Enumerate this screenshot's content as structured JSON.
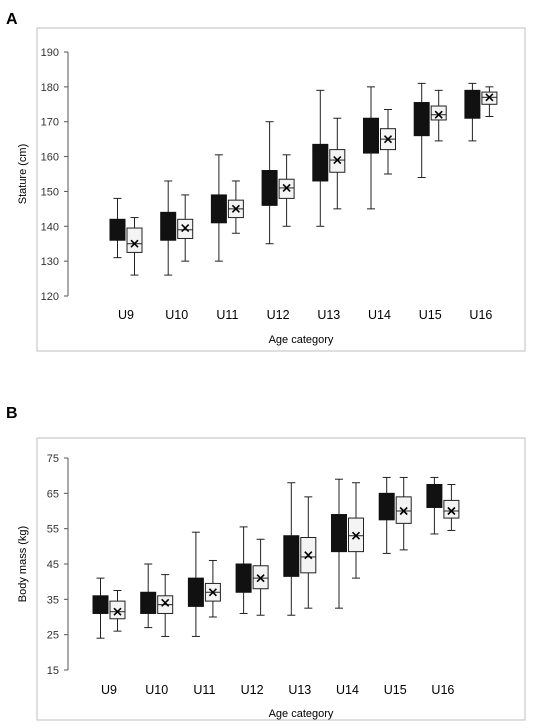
{
  "chart_data": [
    {
      "panel": "A",
      "type": "box",
      "xlabel": "Age category",
      "ylabel": "Stature (cm)",
      "ylim": [
        120,
        190
      ],
      "yticks": [
        120,
        130,
        140,
        150,
        160,
        170,
        180,
        190
      ],
      "categories": [
        "U9",
        "U10",
        "U11",
        "U12",
        "U13",
        "U14",
        "U15",
        "U16"
      ],
      "series": [
        {
          "fill": "#111111",
          "boxes": [
            {
              "min": 131,
              "q1": 136,
              "q3": 142,
              "max": 148
            },
            {
              "min": 126,
              "q1": 136,
              "q3": 144,
              "max": 153
            },
            {
              "min": 130,
              "q1": 141,
              "q3": 149,
              "max": 160.5
            },
            {
              "min": 135,
              "q1": 146,
              "q3": 156,
              "max": 170
            },
            {
              "min": 140,
              "q1": 153,
              "q3": 163.5,
              "max": 179
            },
            {
              "min": 145,
              "q1": 161,
              "q3": 171,
              "max": 180
            },
            {
              "min": 154,
              "q1": 166,
              "q3": 175.5,
              "max": 181
            },
            {
              "min": 164.5,
              "q1": 171,
              "q3": 179,
              "max": 181
            }
          ]
        },
        {
          "fill": "#f4f4f4",
          "boxes": [
            {
              "min": 126,
              "q1": 132.5,
              "median": 135,
              "q3": 139.5,
              "max": 142.5,
              "mean": 135
            },
            {
              "min": 130,
              "q1": 136.5,
              "median": 139,
              "q3": 142,
              "max": 149,
              "mean": 139.5
            },
            {
              "min": 138,
              "q1": 142.5,
              "median": 145,
              "q3": 147.5,
              "max": 153,
              "mean": 145
            },
            {
              "min": 140,
              "q1": 148,
              "median": 151,
              "q3": 153.5,
              "max": 160.5,
              "mean": 151
            },
            {
              "min": 145,
              "q1": 155.5,
              "median": 159,
              "q3": 162,
              "max": 171,
              "mean": 159
            },
            {
              "min": 155,
              "q1": 162,
              "median": 165,
              "q3": 168,
              "max": 173.5,
              "mean": 165
            },
            {
              "min": 164.5,
              "q1": 170.5,
              "median": 172,
              "q3": 174.5,
              "max": 179,
              "mean": 172
            },
            {
              "min": 171.5,
              "q1": 175,
              "median": 177,
              "q3": 178.5,
              "max": 180,
              "mean": 177
            }
          ]
        }
      ]
    },
    {
      "panel": "B",
      "type": "box",
      "xlabel": "Age category",
      "ylabel": "Body mass (kg)",
      "ylim": [
        15,
        75
      ],
      "yticks": [
        15,
        25,
        35,
        45,
        55,
        65,
        75
      ],
      "categories": [
        "U9",
        "U10",
        "U11",
        "U12",
        "U13",
        "U14",
        "U15",
        "U16"
      ],
      "series": [
        {
          "fill": "#111111",
          "boxes": [
            {
              "min": 24,
              "q1": 31,
              "q3": 36,
              "max": 41
            },
            {
              "min": 27,
              "q1": 31,
              "q3": 37,
              "max": 45
            },
            {
              "min": 24.5,
              "q1": 33,
              "q3": 41,
              "max": 54
            },
            {
              "min": 31,
              "q1": 37,
              "q3": 45,
              "max": 55.5
            },
            {
              "min": 30.5,
              "q1": 41.5,
              "q3": 53,
              "max": 68
            },
            {
              "min": 32.5,
              "q1": 48.5,
              "q3": 59,
              "max": 69
            },
            {
              "min": 48,
              "q1": 57.5,
              "q3": 65,
              "max": 69.5
            },
            {
              "min": 53.5,
              "q1": 61,
              "q3": 67.5,
              "max": 69.5
            }
          ]
        },
        {
          "fill": "#f4f4f4",
          "boxes": [
            {
              "min": 26,
              "q1": 29.5,
              "median": 31.5,
              "q3": 34.5,
              "max": 37.5,
              "mean": 31.5
            },
            {
              "min": 24.5,
              "q1": 31,
              "median": 33.5,
              "q3": 36,
              "max": 42,
              "mean": 34
            },
            {
              "min": 30,
              "q1": 34.5,
              "median": 37,
              "q3": 39.5,
              "max": 46,
              "mean": 37
            },
            {
              "min": 30.5,
              "q1": 38,
              "median": 41,
              "q3": 44.5,
              "max": 52,
              "mean": 41
            },
            {
              "min": 32.5,
              "q1": 42.5,
              "median": 47,
              "q3": 52.5,
              "max": 64,
              "mean": 47.5
            },
            {
              "min": 41,
              "q1": 48.5,
              "median": 53,
              "q3": 58,
              "max": 68,
              "mean": 53
            },
            {
              "min": 49,
              "q1": 56.5,
              "median": 60,
              "q3": 64,
              "max": 69.5,
              "mean": 60
            },
            {
              "min": 54.5,
              "q1": 58,
              "median": 60,
              "q3": 63,
              "max": 67.5,
              "mean": 60
            }
          ]
        }
      ]
    }
  ]
}
